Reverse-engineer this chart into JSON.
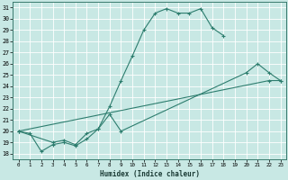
{
  "xlabel": "Humidex (Indice chaleur)",
  "xlim": [
    -0.5,
    23.5
  ],
  "ylim": [
    17.5,
    31.5
  ],
  "xticks": [
    0,
    1,
    2,
    3,
    4,
    5,
    6,
    7,
    8,
    9,
    10,
    11,
    12,
    13,
    14,
    15,
    16,
    17,
    18,
    19,
    20,
    21,
    22,
    23
  ],
  "yticks": [
    18,
    19,
    20,
    21,
    22,
    23,
    24,
    25,
    26,
    27,
    28,
    29,
    30,
    31
  ],
  "background_color": "#c8e8e4",
  "grid_color": "#b0d8d4",
  "line_color": "#2d7d6e",
  "line1_x": [
    0,
    1,
    2,
    3,
    4,
    5,
    6,
    7,
    8,
    9,
    10,
    11,
    12,
    13,
    14,
    15,
    16,
    17,
    18
  ],
  "line1_y": [
    20.0,
    19.8,
    18.2,
    18.8,
    19.0,
    18.7,
    19.3,
    20.2,
    22.2,
    24.5,
    26.7,
    29.0,
    30.5,
    30.9,
    30.5,
    30.5,
    30.9,
    29.2,
    28.5
  ],
  "line2_x": [
    0,
    3,
    4,
    5,
    6,
    7,
    8,
    9,
    20,
    21,
    22,
    23
  ],
  "line2_y": [
    20.0,
    19.0,
    19.2,
    18.8,
    19.8,
    20.2,
    21.5,
    20.0,
    25.2,
    26.0,
    25.2,
    24.5
  ],
  "line3_x": [
    0,
    22,
    23
  ],
  "line3_y": [
    20.0,
    24.5,
    24.5
  ]
}
